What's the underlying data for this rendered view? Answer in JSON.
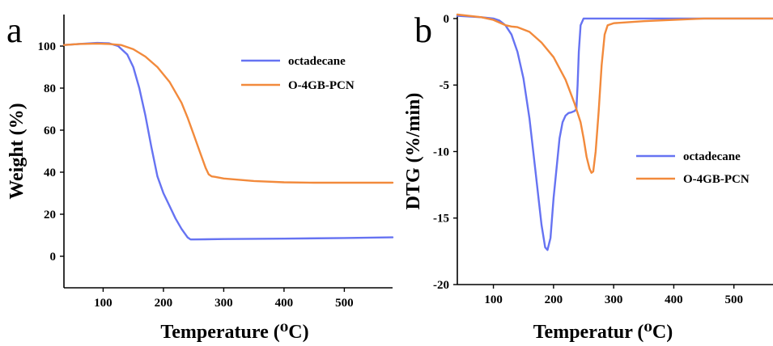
{
  "colors": {
    "octadecane": "#6673f2",
    "O-4GB-PCN": "#f28a3c",
    "axis": "#000000"
  },
  "chart_data": [
    {
      "panel_label": "a",
      "type": "line",
      "xlabel": "Temperature (⁰C)",
      "ylabel": "Weight (%)",
      "xlim": [
        35,
        580
      ],
      "ylim": [
        -15,
        115
      ],
      "xticks": [
        100,
        200,
        300,
        400,
        500
      ],
      "yticks": [
        0,
        20,
        40,
        60,
        80,
        100
      ],
      "grid": false,
      "legend": "top-right",
      "series": [
        {
          "name": "octadecane",
          "color_key": "octadecane",
          "x": [
            35,
            60,
            90,
            110,
            125,
            140,
            150,
            160,
            170,
            180,
            190,
            200,
            210,
            220,
            230,
            240,
            245,
            250,
            300,
            400,
            500,
            580
          ],
          "y": [
            100.5,
            101,
            101.5,
            101.3,
            100,
            96,
            90,
            80,
            67,
            52,
            38,
            30,
            24,
            18,
            13,
            9,
            8,
            8,
            8.2,
            8.4,
            8.7,
            9
          ]
        },
        {
          "name": "O-4GB-PCN",
          "color_key": "O-4GB-PCN",
          "x": [
            35,
            60,
            90,
            110,
            130,
            150,
            170,
            190,
            210,
            230,
            240,
            250,
            260,
            270,
            275,
            280,
            285,
            300,
            350,
            400,
            450,
            500,
            580
          ],
          "y": [
            100.5,
            101,
            101.2,
            101,
            100.5,
            98.5,
            95,
            90,
            83,
            73,
            66,
            58,
            50,
            42,
            39,
            38,
            37.8,
            37,
            35.8,
            35.2,
            35,
            35,
            35
          ]
        }
      ]
    },
    {
      "panel_label": "b",
      "type": "line",
      "xlabel": "Temperatur (⁰C)",
      "ylabel": "DTG (%/min)",
      "xlim": [
        40,
        565
      ],
      "ylim": [
        -20,
        0.3
      ],
      "xticks": [
        100,
        200,
        300,
        400,
        500
      ],
      "yticks": [
        0,
        -5,
        -10,
        -15,
        -20
      ],
      "grid": false,
      "legend": "center-right",
      "series": [
        {
          "name": "octadecane",
          "color_key": "octadecane",
          "x": [
            40,
            80,
            100,
            110,
            120,
            130,
            140,
            150,
            160,
            170,
            180,
            186,
            190,
            195,
            200,
            210,
            215,
            220,
            225,
            230,
            235,
            238,
            240,
            242,
            245,
            250,
            300,
            400,
            565
          ],
          "y": [
            0.2,
            0.1,
            0,
            -0.15,
            -0.5,
            -1.2,
            -2.5,
            -4.5,
            -7.5,
            -11.5,
            -15.5,
            -17.2,
            -17.4,
            -16.5,
            -13.5,
            -9,
            -7.8,
            -7.3,
            -7.1,
            -7.05,
            -6.95,
            -6.8,
            -5,
            -2.5,
            -0.5,
            0,
            0,
            0,
            0
          ]
        },
        {
          "name": "O-4GB-PCN",
          "color_key": "O-4GB-PCN",
          "x": [
            40,
            80,
            100,
            110,
            120,
            130,
            140,
            160,
            180,
            200,
            220,
            235,
            245,
            250,
            255,
            260,
            263,
            266,
            270,
            275,
            280,
            285,
            290,
            300,
            350,
            400,
            450,
            565
          ],
          "y": [
            0.3,
            0.1,
            -0.1,
            -0.3,
            -0.5,
            -0.6,
            -0.65,
            -1.0,
            -1.8,
            -2.9,
            -4.6,
            -6.4,
            -7.8,
            -9,
            -10.4,
            -11.3,
            -11.6,
            -11.5,
            -10,
            -7,
            -3.5,
            -1.2,
            -0.5,
            -0.35,
            -0.2,
            -0.1,
            0,
            0
          ]
        }
      ]
    }
  ]
}
